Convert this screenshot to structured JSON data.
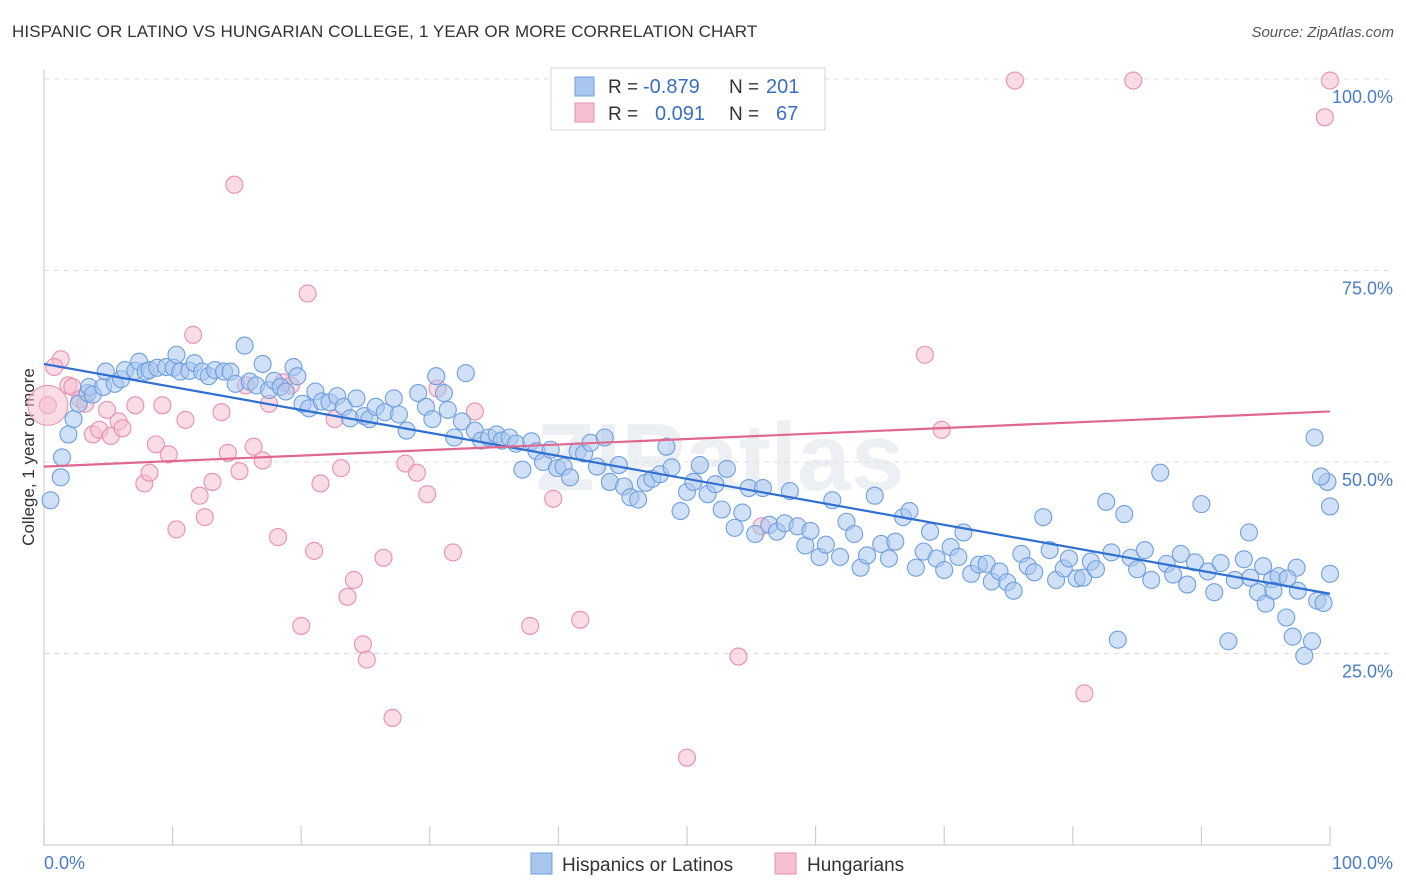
{
  "title": "HISPANIC OR LATINO VS HUNGARIAN COLLEGE, 1 YEAR OR MORE CORRELATION CHART",
  "source": "Source: ZipAtlas.com",
  "watermark": "ZIPatlas",
  "colors": {
    "blue_fill": "#a9c6ee",
    "blue_stroke": "#6e9fe0",
    "blue_line": "#2f6fd1",
    "pink_fill": "#f6c0d0",
    "pink_stroke": "#ea8fad",
    "pink_line": "#e0688f",
    "tick_text": "#4a7cc7",
    "grid": "#dcdcdc"
  },
  "legend": {
    "rows": [
      {
        "r_label": "R =",
        "r_value": "-0.879",
        "n_label": "N =",
        "n_value": "201"
      },
      {
        "r_label": "R =",
        "r_value": "0.091",
        "n_label": "N =",
        "n_value": "67"
      }
    ]
  },
  "bottom_legend": [
    "Hispanics or Latinos",
    "Hungarians"
  ],
  "chart_data": {
    "type": "scatter",
    "xlabel": "",
    "ylabel": "College, 1 year or more",
    "xlim": [
      0,
      100
    ],
    "ylim": [
      0,
      100
    ],
    "x_tick_labels": [
      "0.0%",
      "100.0%"
    ],
    "y_tick_labels": [
      "25.0%",
      "50.0%",
      "75.0%",
      "100.0%"
    ],
    "y_ticks": [
      25,
      50,
      75,
      100
    ],
    "grid": true,
    "legend_position": "top-center",
    "series": [
      {
        "name": "Hispanics or Latinos",
        "color": "#a9c6ee",
        "trend": {
          "x": [
            0,
            100
          ],
          "y": [
            62.8,
            32.8
          ]
        },
        "points": [
          [
            0.5,
            45
          ],
          [
            1.3,
            48
          ],
          [
            1.4,
            50.6
          ],
          [
            1.9,
            53.6
          ],
          [
            2.3,
            55.6
          ],
          [
            2.7,
            57.6
          ],
          [
            3.4,
            59
          ],
          [
            3.5,
            59.8
          ],
          [
            3.8,
            58.8
          ],
          [
            4.6,
            59.8
          ],
          [
            4.8,
            61.8
          ],
          [
            5.5,
            60.2
          ],
          [
            6.0,
            60.8
          ],
          [
            6.3,
            62
          ],
          [
            7.1,
            61.9
          ],
          [
            7.4,
            63.1
          ],
          [
            7.9,
            61.8
          ],
          [
            8.2,
            62
          ],
          [
            8.8,
            62.3
          ],
          [
            9.5,
            62.4
          ],
          [
            10.1,
            62.3
          ],
          [
            10.3,
            64
          ],
          [
            10.6,
            61.8
          ],
          [
            11.3,
            61.9
          ],
          [
            11.7,
            62.9
          ],
          [
            12.3,
            61.8
          ],
          [
            12.8,
            61.2
          ],
          [
            13.3,
            62
          ],
          [
            14.0,
            61.8
          ],
          [
            14.5,
            61.8
          ],
          [
            14.9,
            60.2
          ],
          [
            15.6,
            65.2
          ],
          [
            16.0,
            60.5
          ],
          [
            16.5,
            60
          ],
          [
            17.0,
            62.8
          ],
          [
            17.5,
            59.4
          ],
          [
            17.9,
            60.6
          ],
          [
            18.4,
            59.8
          ],
          [
            18.8,
            59.2
          ],
          [
            19.4,
            62.4
          ],
          [
            19.7,
            61.2
          ],
          [
            20.1,
            57.6
          ],
          [
            20.6,
            57
          ],
          [
            21.1,
            59.2
          ],
          [
            21.6,
            57.9
          ],
          [
            22.2,
            57.8
          ],
          [
            22.8,
            58.6
          ],
          [
            23.3,
            57.2
          ],
          [
            23.8,
            55.7
          ],
          [
            24.3,
            58.3
          ],
          [
            24.9,
            56
          ],
          [
            25.3,
            55.6
          ],
          [
            25.8,
            57.2
          ],
          [
            26.5,
            56.5
          ],
          [
            27.2,
            58.3
          ],
          [
            27.6,
            56.2
          ],
          [
            28.2,
            54.1
          ],
          [
            29.1,
            59
          ],
          [
            29.7,
            57.2
          ],
          [
            30.2,
            55.6
          ],
          [
            30.5,
            61.2
          ],
          [
            31.1,
            59
          ],
          [
            31.4,
            56.8
          ],
          [
            31.9,
            53.2
          ],
          [
            32.5,
            55.3
          ],
          [
            32.8,
            61.6
          ],
          [
            33.5,
            54.1
          ],
          [
            34.0,
            52.8
          ],
          [
            34.6,
            53.2
          ],
          [
            35.2,
            53.6
          ],
          [
            35.6,
            52.8
          ],
          [
            36.2,
            53.2
          ],
          [
            36.7,
            52.4
          ],
          [
            37.2,
            49
          ],
          [
            37.9,
            52.7
          ],
          [
            38.3,
            51.4
          ],
          [
            38.8,
            50
          ],
          [
            39.4,
            51.6
          ],
          [
            39.9,
            49.2
          ],
          [
            40.4,
            49.4
          ],
          [
            40.9,
            48
          ],
          [
            41.5,
            51.4
          ],
          [
            42.0,
            51.1
          ],
          [
            42.5,
            52.5
          ],
          [
            43.0,
            49.4
          ],
          [
            43.6,
            53.2
          ],
          [
            44.0,
            47.4
          ],
          [
            44.7,
            49.6
          ],
          [
            45.1,
            46.8
          ],
          [
            45.6,
            45.4
          ],
          [
            46.2,
            45.1
          ],
          [
            46.8,
            47.3
          ],
          [
            47.3,
            47.8
          ],
          [
            47.9,
            48.4
          ],
          [
            48.4,
            52
          ],
          [
            48.8,
            49.3
          ],
          [
            49.5,
            43.6
          ],
          [
            50.0,
            46.1
          ],
          [
            50.5,
            47.4
          ],
          [
            51.0,
            49.6
          ],
          [
            51.6,
            45.8
          ],
          [
            52.2,
            47.1
          ],
          [
            52.7,
            43.8
          ],
          [
            53.1,
            49.1
          ],
          [
            53.7,
            41.4
          ],
          [
            54.3,
            43.4
          ],
          [
            54.8,
            46.6
          ],
          [
            55.3,
            40.6
          ],
          [
            55.9,
            46.6
          ],
          [
            56.4,
            41.8
          ],
          [
            57.0,
            40.9
          ],
          [
            57.6,
            42
          ],
          [
            58.0,
            46.2
          ],
          [
            58.6,
            41.6
          ],
          [
            59.2,
            39.1
          ],
          [
            59.6,
            41
          ],
          [
            60.3,
            37.6
          ],
          [
            60.8,
            39.2
          ],
          [
            61.3,
            45
          ],
          [
            61.9,
            37.6
          ],
          [
            62.4,
            42.2
          ],
          [
            63.0,
            40.6
          ],
          [
            63.5,
            36.2
          ],
          [
            64.0,
            37.8
          ],
          [
            64.6,
            45.6
          ],
          [
            65.1,
            39.3
          ],
          [
            65.7,
            37.4
          ],
          [
            66.2,
            39.6
          ],
          [
            66.8,
            42.8
          ],
          [
            67.3,
            43.6
          ],
          [
            67.8,
            36.2
          ],
          [
            68.4,
            38.3
          ],
          [
            68.9,
            40.9
          ],
          [
            69.4,
            37.4
          ],
          [
            70.0,
            35.9
          ],
          [
            70.5,
            38.9
          ],
          [
            71.1,
            37.6
          ],
          [
            71.5,
            40.8
          ],
          [
            72.1,
            35.4
          ],
          [
            72.7,
            36.6
          ],
          [
            73.3,
            36.7
          ],
          [
            73.7,
            34.4
          ],
          [
            74.3,
            35.7
          ],
          [
            74.9,
            34.3
          ],
          [
            75.4,
            33.2
          ],
          [
            76.0,
            38
          ],
          [
            76.5,
            36.4
          ],
          [
            77.0,
            35.6
          ],
          [
            77.7,
            42.8
          ],
          [
            78.2,
            38.5
          ],
          [
            78.7,
            34.6
          ],
          [
            79.3,
            36.1
          ],
          [
            79.7,
            37.4
          ],
          [
            80.3,
            34.8
          ],
          [
            80.8,
            34.9
          ],
          [
            81.4,
            37
          ],
          [
            81.8,
            36
          ],
          [
            82.6,
            44.8
          ],
          [
            83.0,
            38.2
          ],
          [
            83.5,
            26.8
          ],
          [
            84.0,
            43.2
          ],
          [
            84.5,
            37.5
          ],
          [
            85.0,
            36
          ],
          [
            85.6,
            38.5
          ],
          [
            86.1,
            34.6
          ],
          [
            86.8,
            48.6
          ],
          [
            87.3,
            36.7
          ],
          [
            87.8,
            35.3
          ],
          [
            88.4,
            38
          ],
          [
            88.9,
            34
          ],
          [
            89.5,
            36.9
          ],
          [
            90.0,
            44.5
          ],
          [
            90.5,
            35.7
          ],
          [
            91.0,
            33
          ],
          [
            91.5,
            36.8
          ],
          [
            92.1,
            26.6
          ],
          [
            92.6,
            34.6
          ],
          [
            93.3,
            37.3
          ],
          [
            93.8,
            34.9
          ],
          [
            94.4,
            33
          ],
          [
            95.0,
            31.5
          ],
          [
            95.5,
            34.7
          ],
          [
            96.0,
            35.1
          ],
          [
            96.6,
            29.7
          ],
          [
            97.1,
            27.2
          ],
          [
            97.5,
            33.2
          ],
          [
            98.0,
            24.7
          ],
          [
            98.6,
            26.6
          ],
          [
            99.0,
            31.9
          ],
          [
            99.5,
            31.6
          ],
          [
            100,
            35.4
          ],
          [
            100,
            44.2
          ],
          [
            99.8,
            47.4
          ],
          [
            99.3,
            48.1
          ],
          [
            98.8,
            53.2
          ],
          [
            97.4,
            36.2
          ],
          [
            96.7,
            34.8
          ],
          [
            95.6,
            33.2
          ],
          [
            94.8,
            36.4
          ],
          [
            93.7,
            40.8
          ]
        ]
      },
      {
        "name": "Hungarians",
        "color": "#f6c0d0",
        "trend": {
          "x": [
            0,
            100
          ],
          "y": [
            49.4,
            56.6
          ]
        },
        "points": [
          [
            0.3,
            57.4
          ],
          [
            1.3,
            63.4
          ],
          [
            1.9,
            60
          ],
          [
            2.2,
            59.8
          ],
          [
            2.8,
            58.2
          ],
          [
            3.2,
            57.6
          ],
          [
            3.8,
            53.6
          ],
          [
            4.3,
            54.2
          ],
          [
            4.9,
            56.8
          ],
          [
            5.2,
            53.4
          ],
          [
            5.8,
            55.3
          ],
          [
            6.1,
            54.4
          ],
          [
            7.1,
            57.4
          ],
          [
            7.8,
            47.2
          ],
          [
            8.2,
            48.6
          ],
          [
            8.7,
            52.3
          ],
          [
            9.2,
            57.4
          ],
          [
            9.7,
            51
          ],
          [
            10.3,
            41.2
          ],
          [
            11.0,
            55.5
          ],
          [
            11.6,
            66.6
          ],
          [
            12.1,
            45.6
          ],
          [
            12.5,
            42.8
          ],
          [
            13.1,
            47.4
          ],
          [
            13.8,
            56.5
          ],
          [
            14.3,
            51.2
          ],
          [
            14.8,
            86.2
          ],
          [
            15.2,
            48.8
          ],
          [
            15.7,
            60
          ],
          [
            16.3,
            52
          ],
          [
            17.0,
            50.2
          ],
          [
            17.5,
            57.6
          ],
          [
            18.2,
            40.2
          ],
          [
            18.6,
            60.4
          ],
          [
            19.2,
            60
          ],
          [
            20.0,
            28.6
          ],
          [
            20.5,
            72
          ],
          [
            21.0,
            38.4
          ],
          [
            21.5,
            47.2
          ],
          [
            22.6,
            55.6
          ],
          [
            23.1,
            49.2
          ],
          [
            23.6,
            32.4
          ],
          [
            24.1,
            34.6
          ],
          [
            24.8,
            26.2
          ],
          [
            25.1,
            24.2
          ],
          [
            26.4,
            37.5
          ],
          [
            27.1,
            16.6
          ],
          [
            28.1,
            49.8
          ],
          [
            29.0,
            48.6
          ],
          [
            29.8,
            45.8
          ],
          [
            30.6,
            59.6
          ],
          [
            31.8,
            38.2
          ],
          [
            33.5,
            56.6
          ],
          [
            37.8,
            28.6
          ],
          [
            39.6,
            45.2
          ],
          [
            41.7,
            29.4
          ],
          [
            50.0,
            11.4
          ],
          [
            54.0,
            24.6
          ],
          [
            55.8,
            41.6
          ],
          [
            68.5,
            64
          ],
          [
            69.8,
            54.2
          ],
          [
            75.5,
            99.8
          ],
          [
            80.9,
            19.8
          ],
          [
            84.7,
            99.8
          ],
          [
            100,
            99.8
          ],
          [
            99.6,
            95
          ],
          [
            0.8,
            62.4
          ]
        ]
      }
    ]
  }
}
